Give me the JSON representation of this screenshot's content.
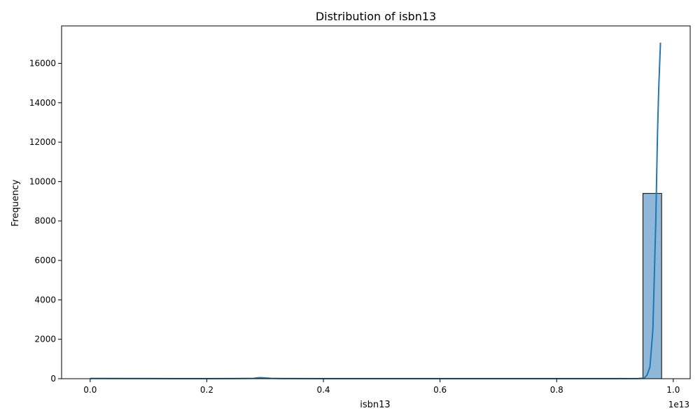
{
  "chart_data": {
    "type": "bar",
    "title": "Distribution of isbn13",
    "xlabel": "isbn13",
    "ylabel": "Frequency",
    "x_offset_label": "1e13",
    "xlim": [
      -0.049,
      1.029
    ],
    "ylim": [
      0,
      17900
    ],
    "x_ticks": [
      0.0,
      0.2,
      0.4,
      0.6,
      0.8,
      1.0
    ],
    "x_tick_labels": [
      "0.0",
      "0.2",
      "0.4",
      "0.6",
      "0.8",
      "1.0"
    ],
    "y_ticks": [
      0,
      2000,
      4000,
      6000,
      8000,
      10000,
      12000,
      14000,
      16000
    ],
    "y_tick_labels": [
      "0",
      "2000",
      "4000",
      "6000",
      "8000",
      "10000",
      "12000",
      "14000",
      "16000"
    ],
    "grid": false,
    "legend": "none",
    "bins": [
      {
        "x0": 0.948,
        "x1": 0.98,
        "count": 9400
      }
    ],
    "kde": {
      "x": [
        0.0,
        0.1,
        0.2,
        0.25,
        0.28,
        0.29,
        0.3,
        0.31,
        0.33,
        0.4,
        0.5,
        0.6,
        0.7,
        0.8,
        0.9,
        0.94,
        0.95,
        0.955,
        0.96,
        0.965,
        0.97,
        0.973,
        0.975,
        0.978
      ],
      "y": [
        15,
        8,
        5,
        8,
        20,
        55,
        40,
        20,
        8,
        5,
        5,
        5,
        5,
        5,
        5,
        10,
        30,
        180,
        600,
        2500,
        8000,
        12500,
        14700,
        17050
      ]
    },
    "colors": {
      "bar_fill": "#8fb8d8",
      "bar_edge": "#000000",
      "line": "#1f77b4"
    }
  }
}
